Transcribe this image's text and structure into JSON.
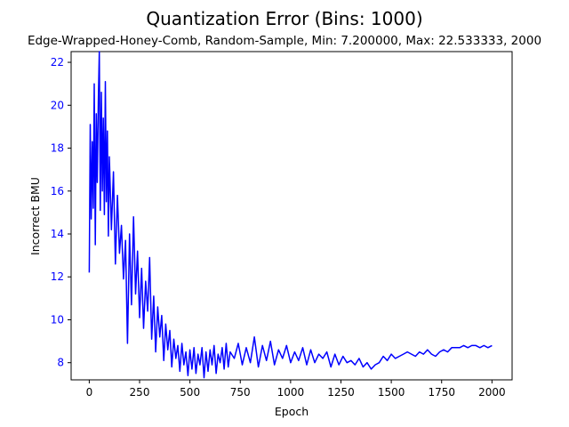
{
  "chart_data": {
    "type": "line",
    "title": "Quantization Error (Bins: 1000)",
    "subtitle": "Edge-Wrapped-Honey-Comb, Random-Sample, Min: 7.200000, Max: 22.533333, 2000",
    "xlabel": "Epoch",
    "ylabel": "Incorrect BMU",
    "xlim": [
      -90,
      2100
    ],
    "ylim": [
      7.2,
      22.5
    ],
    "xticks": [
      "0",
      "250",
      "500",
      "750",
      "1000",
      "1250",
      "1500",
      "1750",
      "2000"
    ],
    "yticks": [
      "8",
      "10",
      "12",
      "14",
      "16",
      "18",
      "20",
      "22"
    ],
    "grid": false,
    "colors": {
      "line": "#0000ff",
      "ylabel": "#0000ff",
      "yticks": "#0000ff",
      "axes": "#000000"
    },
    "series": [
      {
        "x": [
          0,
          5,
          10,
          15,
          20,
          25,
          30,
          35,
          40,
          45,
          50,
          55,
          60,
          65,
          70,
          75,
          80,
          85,
          90,
          95,
          100,
          110,
          120,
          130,
          140,
          150,
          160,
          170,
          180,
          190,
          200,
          210,
          220,
          230,
          240,
          250,
          260,
          270,
          280,
          290,
          300,
          310,
          320,
          330,
          340,
          350,
          360,
          370,
          380,
          390,
          400,
          410,
          420,
          430,
          440,
          450,
          460,
          470,
          480,
          490,
          500,
          510,
          520,
          530,
          540,
          550,
          560,
          570,
          580,
          590,
          600,
          610,
          620,
          630,
          640,
          650,
          660,
          670,
          680,
          690,
          700,
          720,
          740,
          760,
          780,
          800,
          820,
          840,
          860,
          880,
          900,
          920,
          940,
          960,
          980,
          1000,
          1020,
          1040,
          1060,
          1080,
          1100,
          1120,
          1140,
          1160,
          1180,
          1200,
          1220,
          1240,
          1260,
          1280,
          1300,
          1320,
          1340,
          1360,
          1380,
          1400,
          1420,
          1440,
          1460,
          1480,
          1500,
          1520,
          1540,
          1560,
          1580,
          1600,
          1620,
          1640,
          1660,
          1680,
          1700,
          1720,
          1740,
          1760,
          1780,
          1800,
          1820,
          1840,
          1860,
          1880,
          1900,
          1920,
          1940,
          1960,
          1980,
          2000
        ],
        "y": [
          12.2,
          19.1,
          14.7,
          18.3,
          15.2,
          21.0,
          13.5,
          19.6,
          16.4,
          20.2,
          22.5,
          15.1,
          20.6,
          16.0,
          19.4,
          14.9,
          21.1,
          15.5,
          18.8,
          13.9,
          17.6,
          14.2,
          16.9,
          12.6,
          15.8,
          13.1,
          14.4,
          11.9,
          13.7,
          8.9,
          14.0,
          10.7,
          14.8,
          11.2,
          13.2,
          10.1,
          12.4,
          9.6,
          11.8,
          10.4,
          12.9,
          9.1,
          11.1,
          8.5,
          10.6,
          9.2,
          10.2,
          8.1,
          9.8,
          8.6,
          9.5,
          7.8,
          9.1,
          8.2,
          8.8,
          7.6,
          8.9,
          7.9,
          8.5,
          7.4,
          8.6,
          7.7,
          8.7,
          7.5,
          8.4,
          7.9,
          8.7,
          7.3,
          8.5,
          7.6,
          8.6,
          7.9,
          8.8,
          7.5,
          8.4,
          8.0,
          8.7,
          7.7,
          8.9,
          7.8,
          8.5,
          8.2,
          8.9,
          7.9,
          8.7,
          8.0,
          9.2,
          7.8,
          8.8,
          8.1,
          9.0,
          7.9,
          8.6,
          8.2,
          8.8,
          8.0,
          8.5,
          8.1,
          8.7,
          7.9,
          8.6,
          8.0,
          8.4,
          8.2,
          8.5,
          7.8,
          8.4,
          7.9,
          8.3,
          8.0,
          8.1,
          7.9,
          8.2,
          7.8,
          8.0,
          7.7,
          7.9,
          8.0,
          8.3,
          8.1,
          8.4,
          8.2,
          8.3,
          8.4,
          8.5,
          8.4,
          8.3,
          8.5,
          8.4,
          8.6,
          8.4,
          8.3,
          8.5,
          8.6,
          8.5,
          8.7,
          8.7,
          8.7,
          8.8,
          8.7,
          8.8,
          8.8,
          8.7,
          8.8,
          8.7,
          8.8
        ]
      }
    ]
  }
}
